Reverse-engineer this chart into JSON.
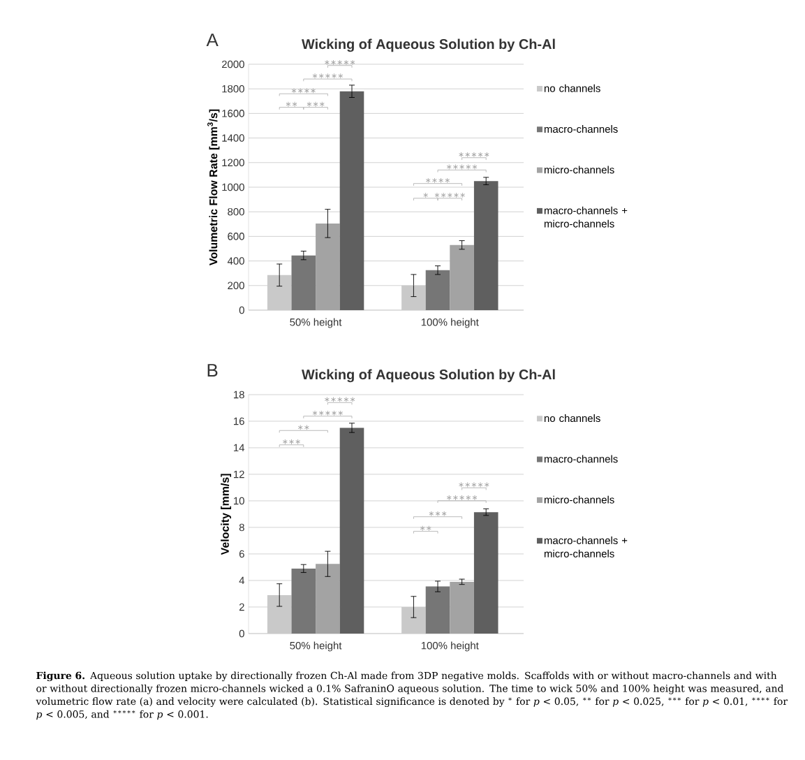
{
  "chart_data": [
    {
      "type": "bar",
      "title": "Wicking of Aqueous Solution by Ch-Al",
      "ylabel": "Volumetric Flow Rate [mm$^{3}$/s]",
      "categories": [
        "50% height",
        "100% height"
      ],
      "series": [
        {
          "name": "no channels",
          "color": "#c9c9c9",
          "values": [
            285,
            200
          ],
          "errors": [
            90,
            90
          ]
        },
        {
          "name": "macro-channels",
          "color": "#767676",
          "values": [
            445,
            325
          ],
          "errors": [
            35,
            35
          ]
        },
        {
          "name": "micro-channels",
          "color": "#a3a3a3",
          "values": [
            705,
            530
          ],
          "errors": [
            115,
            35
          ]
        },
        {
          "name": "macro-channels + micro-channels",
          "color": "#5f5f5f",
          "values": [
            1780,
            1050
          ],
          "errors": [
            50,
            30
          ]
        }
      ],
      "ylim": [
        0,
        2000
      ],
      "yticks": [
        0,
        200,
        400,
        600,
        800,
        1000,
        1200,
        1400,
        1600,
        1800,
        2000
      ],
      "grid": "y",
      "legend": "right",
      "annotations": [
        "A",
        "∗∗",
        "∗∗∗",
        "∗∗∗∗",
        "∗∗∗∗∗",
        "∗∗∗∗∗",
        "∗",
        "∗∗∗∗∗",
        "∗∗∗∗",
        "∗∗∗∗∗",
        "∗∗∗∗∗"
      ]
    },
    {
      "type": "bar",
      "title": "Wicking of Aqueous Solution by Ch-Al",
      "ylabel": "Velocity [mm/s]",
      "categories": [
        "50% height",
        "100% height"
      ],
      "series": [
        {
          "name": "no channels",
          "color": "#c9c9c9",
          "values": [
            2.9,
            2.0
          ],
          "errors": [
            0.85,
            0.8
          ]
        },
        {
          "name": "macro-channels",
          "color": "#767676",
          "values": [
            4.9,
            3.55
          ],
          "errors": [
            0.3,
            0.4
          ]
        },
        {
          "name": "micro-channels",
          "color": "#a3a3a3",
          "values": [
            5.25,
            3.9
          ],
          "errors": [
            0.95,
            0.2
          ]
        },
        {
          "name": "macro-channels + micro-channels",
          "color": "#5f5f5f",
          "values": [
            15.5,
            9.15
          ],
          "errors": [
            0.35,
            0.25
          ]
        }
      ],
      "ylim": [
        0,
        18
      ],
      "yticks": [
        0,
        2,
        4,
        6,
        8,
        10,
        12,
        14,
        16,
        18
      ],
      "grid": "y",
      "legend": "right",
      "annotations": [
        "B",
        "∗∗∗",
        "∗∗",
        "∗∗∗∗∗",
        "∗∗∗∗∗",
        "∗∗",
        "∗∗∗",
        "∗∗∗∗∗",
        "∗∗∗∗∗",
        "**Figure 6.** Aqueous solution uptake by directionally frozen Ch-Al made from 3DP negative molds. Scaffolds with or without macro-channels and with or without directionally frozen micro-channels wicked a 0.1% SafraninO aqueous solution. The time to wick 50% and 100% height was measured, and volumetric flow rate (a) and velocity were calculated (b). Statistical significance is denoted by $^{∗}$ for *p* < 0.05, $^{∗∗}$ for *p* < 0.025, $^{∗∗∗}$ for *p* < 0.01, $^{∗∗∗∗}$ for *p* < 0.005, and $^{∗∗∗∗∗}$ for *p* < 0.001."
      ]
    }
  ]
}
